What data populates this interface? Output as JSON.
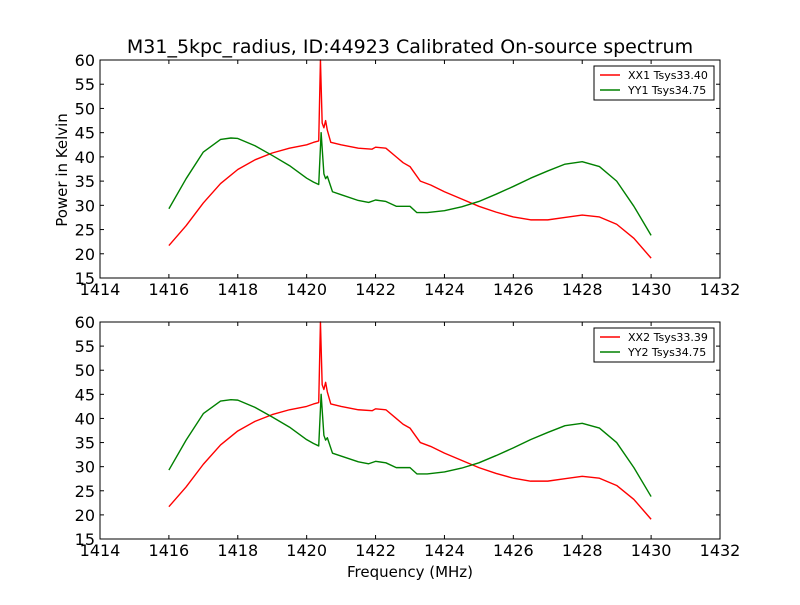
{
  "chart_data": [
    {
      "type": "line",
      "title": "M31_5kpc_radius, ID:44923 Calibrated On-source spectrum",
      "xlabel": "",
      "ylabel": "Power in Kelvin",
      "xlim": [
        1414,
        1432
      ],
      "ylim": [
        15,
        60
      ],
      "xticks": [
        1414,
        1416,
        1418,
        1420,
        1422,
        1424,
        1426,
        1428,
        1430,
        1432
      ],
      "yticks": [
        15,
        20,
        25,
        30,
        35,
        40,
        45,
        50,
        55,
        60
      ],
      "grid": false,
      "legend_position": "top-right",
      "series": [
        {
          "name": "XX1 Tsys33.40",
          "color": "#ff0000",
          "points": [
            [
              1416.0,
              21.7
            ],
            [
              1416.5,
              25.8
            ],
            [
              1417.0,
              30.5
            ],
            [
              1417.5,
              34.5
            ],
            [
              1418.0,
              37.4
            ],
            [
              1418.5,
              39.4
            ],
            [
              1419.0,
              40.8
            ],
            [
              1419.5,
              41.8
            ],
            [
              1420.0,
              42.5
            ],
            [
              1420.2,
              43.0
            ],
            [
              1420.35,
              43.3
            ],
            [
              1420.4,
              60.0
            ],
            [
              1420.45,
              47.0
            ],
            [
              1420.5,
              46.0
            ],
            [
              1420.55,
              47.5
            ],
            [
              1420.6,
              45.5
            ],
            [
              1420.7,
              43.0
            ],
            [
              1421.0,
              42.5
            ],
            [
              1421.5,
              41.8
            ],
            [
              1421.9,
              41.6
            ],
            [
              1422.0,
              42.0
            ],
            [
              1422.3,
              41.8
            ],
            [
              1422.6,
              40.0
            ],
            [
              1422.8,
              38.8
            ],
            [
              1423.0,
              38.0
            ],
            [
              1423.1,
              37.0
            ],
            [
              1423.3,
              35.0
            ],
            [
              1423.6,
              34.2
            ],
            [
              1424.0,
              32.8
            ],
            [
              1424.5,
              31.3
            ],
            [
              1425.0,
              29.8
            ],
            [
              1425.5,
              28.6
            ],
            [
              1426.0,
              27.6
            ],
            [
              1426.5,
              27.0
            ],
            [
              1427.0,
              27.0
            ],
            [
              1427.5,
              27.5
            ],
            [
              1428.0,
              28.0
            ],
            [
              1428.5,
              27.6
            ],
            [
              1429.0,
              26.1
            ],
            [
              1429.5,
              23.2
            ],
            [
              1430.0,
              19.1
            ]
          ]
        },
        {
          "name": "YY1 Tsys34.75",
          "color": "#008000",
          "points": [
            [
              1416.0,
              29.3
            ],
            [
              1416.5,
              35.5
            ],
            [
              1417.0,
              41.0
            ],
            [
              1417.5,
              43.6
            ],
            [
              1417.8,
              43.9
            ],
            [
              1418.0,
              43.8
            ],
            [
              1418.5,
              42.3
            ],
            [
              1419.0,
              40.3
            ],
            [
              1419.5,
              38.2
            ],
            [
              1420.0,
              35.6
            ],
            [
              1420.2,
              34.8
            ],
            [
              1420.35,
              34.3
            ],
            [
              1420.42,
              45.0
            ],
            [
              1420.5,
              36.5
            ],
            [
              1420.55,
              35.5
            ],
            [
              1420.6,
              36.0
            ],
            [
              1420.75,
              32.8
            ],
            [
              1421.0,
              32.2
            ],
            [
              1421.5,
              31.0
            ],
            [
              1421.8,
              30.6
            ],
            [
              1422.0,
              31.1
            ],
            [
              1422.3,
              30.8
            ],
            [
              1422.6,
              29.8
            ],
            [
              1423.0,
              29.8
            ],
            [
              1423.2,
              28.5
            ],
            [
              1423.5,
              28.5
            ],
            [
              1424.0,
              28.9
            ],
            [
              1424.5,
              29.7
            ],
            [
              1425.0,
              30.8
            ],
            [
              1425.5,
              32.3
            ],
            [
              1426.0,
              33.9
            ],
            [
              1426.5,
              35.6
            ],
            [
              1427.0,
              37.1
            ],
            [
              1427.5,
              38.5
            ],
            [
              1428.0,
              39.0
            ],
            [
              1428.5,
              38.0
            ],
            [
              1429.0,
              35.0
            ],
            [
              1429.5,
              29.8
            ],
            [
              1430.0,
              23.8
            ]
          ]
        }
      ]
    },
    {
      "type": "line",
      "title": "",
      "xlabel": "Frequency (MHz)",
      "ylabel": "",
      "xlim": [
        1414,
        1432
      ],
      "ylim": [
        15,
        60
      ],
      "xticks": [
        1414,
        1416,
        1418,
        1420,
        1422,
        1424,
        1426,
        1428,
        1430,
        1432
      ],
      "yticks": [
        15,
        20,
        25,
        30,
        35,
        40,
        45,
        50,
        55,
        60
      ],
      "grid": false,
      "legend_position": "top-right",
      "series": [
        {
          "name": "XX2 Tsys33.39",
          "color": "#ff0000",
          "points": [
            [
              1416.0,
              21.7
            ],
            [
              1416.5,
              25.8
            ],
            [
              1417.0,
              30.5
            ],
            [
              1417.5,
              34.5
            ],
            [
              1418.0,
              37.4
            ],
            [
              1418.5,
              39.4
            ],
            [
              1419.0,
              40.8
            ],
            [
              1419.5,
              41.8
            ],
            [
              1420.0,
              42.5
            ],
            [
              1420.2,
              43.0
            ],
            [
              1420.35,
              43.3
            ],
            [
              1420.4,
              60.0
            ],
            [
              1420.45,
              47.0
            ],
            [
              1420.5,
              46.0
            ],
            [
              1420.55,
              47.5
            ],
            [
              1420.6,
              45.5
            ],
            [
              1420.7,
              43.0
            ],
            [
              1421.0,
              42.5
            ],
            [
              1421.5,
              41.8
            ],
            [
              1421.9,
              41.6
            ],
            [
              1422.0,
              42.0
            ],
            [
              1422.3,
              41.8
            ],
            [
              1422.6,
              40.0
            ],
            [
              1422.8,
              38.8
            ],
            [
              1423.0,
              38.0
            ],
            [
              1423.1,
              37.0
            ],
            [
              1423.3,
              35.0
            ],
            [
              1423.6,
              34.2
            ],
            [
              1424.0,
              32.8
            ],
            [
              1424.5,
              31.3
            ],
            [
              1425.0,
              29.8
            ],
            [
              1425.5,
              28.6
            ],
            [
              1426.0,
              27.6
            ],
            [
              1426.5,
              27.0
            ],
            [
              1427.0,
              27.0
            ],
            [
              1427.5,
              27.5
            ],
            [
              1428.0,
              28.0
            ],
            [
              1428.5,
              27.6
            ],
            [
              1429.0,
              26.1
            ],
            [
              1429.5,
              23.2
            ],
            [
              1430.0,
              19.1
            ]
          ]
        },
        {
          "name": "YY2 Tsys34.75",
          "color": "#008000",
          "points": [
            [
              1416.0,
              29.3
            ],
            [
              1416.5,
              35.5
            ],
            [
              1417.0,
              41.0
            ],
            [
              1417.5,
              43.6
            ],
            [
              1417.8,
              43.9
            ],
            [
              1418.0,
              43.8
            ],
            [
              1418.5,
              42.3
            ],
            [
              1419.0,
              40.3
            ],
            [
              1419.5,
              38.2
            ],
            [
              1420.0,
              35.6
            ],
            [
              1420.2,
              34.8
            ],
            [
              1420.35,
              34.3
            ],
            [
              1420.42,
              45.0
            ],
            [
              1420.5,
              36.5
            ],
            [
              1420.55,
              35.5
            ],
            [
              1420.6,
              36.0
            ],
            [
              1420.75,
              32.8
            ],
            [
              1421.0,
              32.2
            ],
            [
              1421.5,
              31.0
            ],
            [
              1421.8,
              30.6
            ],
            [
              1422.0,
              31.1
            ],
            [
              1422.3,
              30.8
            ],
            [
              1422.6,
              29.8
            ],
            [
              1423.0,
              29.8
            ],
            [
              1423.2,
              28.5
            ],
            [
              1423.5,
              28.5
            ],
            [
              1424.0,
              28.9
            ],
            [
              1424.5,
              29.7
            ],
            [
              1425.0,
              30.8
            ],
            [
              1425.5,
              32.3
            ],
            [
              1426.0,
              33.9
            ],
            [
              1426.5,
              35.6
            ],
            [
              1427.0,
              37.1
            ],
            [
              1427.5,
              38.5
            ],
            [
              1428.0,
              39.0
            ],
            [
              1428.5,
              38.0
            ],
            [
              1429.0,
              35.0
            ],
            [
              1429.5,
              29.8
            ],
            [
              1430.0,
              23.8
            ]
          ]
        }
      ]
    }
  ]
}
